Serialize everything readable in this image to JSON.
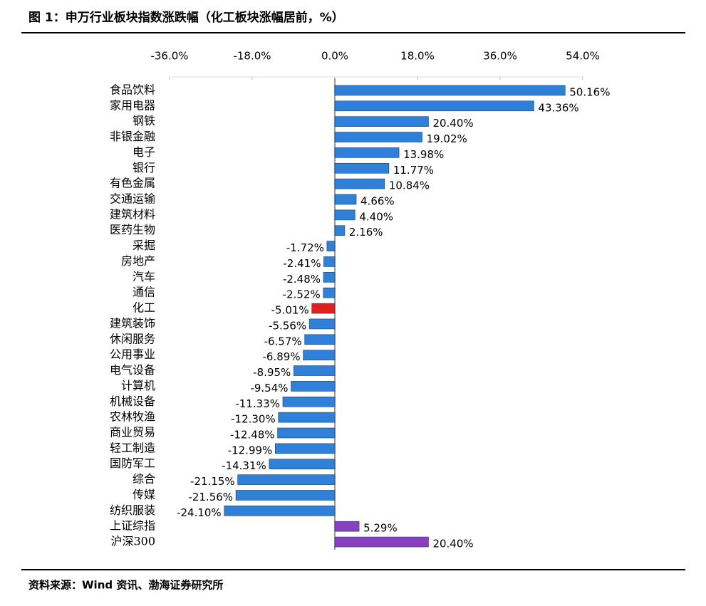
{
  "chart_data": {
    "type": "bar",
    "orientation": "horizontal",
    "title": "图 1：申万行业板块指数涨跌幅（化工板块涨幅居前，%）",
    "source": "资料来源：Wind 资讯、渤海证券研究所",
    "categories": [
      "食品饮料",
      "家用电器",
      "钢铁",
      "非银金融",
      "电子",
      "银行",
      "有色金属",
      "交通运输",
      "建筑材料",
      "医药生物",
      "采掘",
      "房地产",
      "汽车",
      "通信",
      "化工",
      "建筑装饰",
      "休闲服务",
      "公用事业",
      "电气设备",
      "计算机",
      "机械设备",
      "农林牧渔",
      "商业贸易",
      "轻工制造",
      "国防军工",
      "综合",
      "传媒",
      "纺织服装",
      "上证综指",
      "沪深300"
    ],
    "values": [
      50.16,
      43.36,
      20.4,
      19.02,
      13.98,
      11.77,
      10.84,
      4.66,
      4.4,
      2.16,
      -1.72,
      -2.41,
      -2.48,
      -2.52,
      -5.01,
      -5.56,
      -6.57,
      -6.89,
      -8.95,
      -9.54,
      -11.33,
      -12.3,
      -12.48,
      -12.99,
      -14.31,
      -21.15,
      -21.56,
      -24.1,
      5.29,
      20.4
    ],
    "value_labels": [
      "50.16%",
      "43.36%",
      "20.40%",
      "19.02%",
      "13.98%",
      "11.77%",
      "10.84%",
      "4.66%",
      "4.40%",
      "2.16%",
      "-1.72%",
      "-2.41%",
      "-2.48%",
      "-2.52%",
      "-5.01%",
      "-5.56%",
      "-6.57%",
      "-6.89%",
      "-8.95%",
      "-9.54%",
      "-11.33%",
      "-12.30%",
      "-12.48%",
      "-12.99%",
      "-14.31%",
      "-21.15%",
      "-21.56%",
      "-24.10%",
      "5.29%",
      "20.40%"
    ],
    "colors": [
      "#2f80d8",
      "#2f80d8",
      "#2f80d8",
      "#2f80d8",
      "#2f80d8",
      "#2f80d8",
      "#2f80d8",
      "#2f80d8",
      "#2f80d8",
      "#2f80d8",
      "#2f80d8",
      "#2f80d8",
      "#2f80d8",
      "#2f80d8",
      "#e0201c",
      "#2f80d8",
      "#2f80d8",
      "#2f80d8",
      "#2f80d8",
      "#2f80d8",
      "#2f80d8",
      "#2f80d8",
      "#2f80d8",
      "#2f80d8",
      "#2f80d8",
      "#2f80d8",
      "#2f80d8",
      "#2f80d8",
      "#8a3fc0",
      "#8a3fc0"
    ],
    "xlim": [
      -36,
      54
    ],
    "xticks": [
      {
        "value": -36,
        "label": "-36.0%"
      },
      {
        "value": -18,
        "label": "-18.0%"
      },
      {
        "value": 0,
        "label": "0.0%"
      },
      {
        "value": 18,
        "label": "18.0%"
      },
      {
        "value": 36,
        "label": "36.0%"
      },
      {
        "value": 54,
        "label": "54.0%"
      }
    ]
  }
}
